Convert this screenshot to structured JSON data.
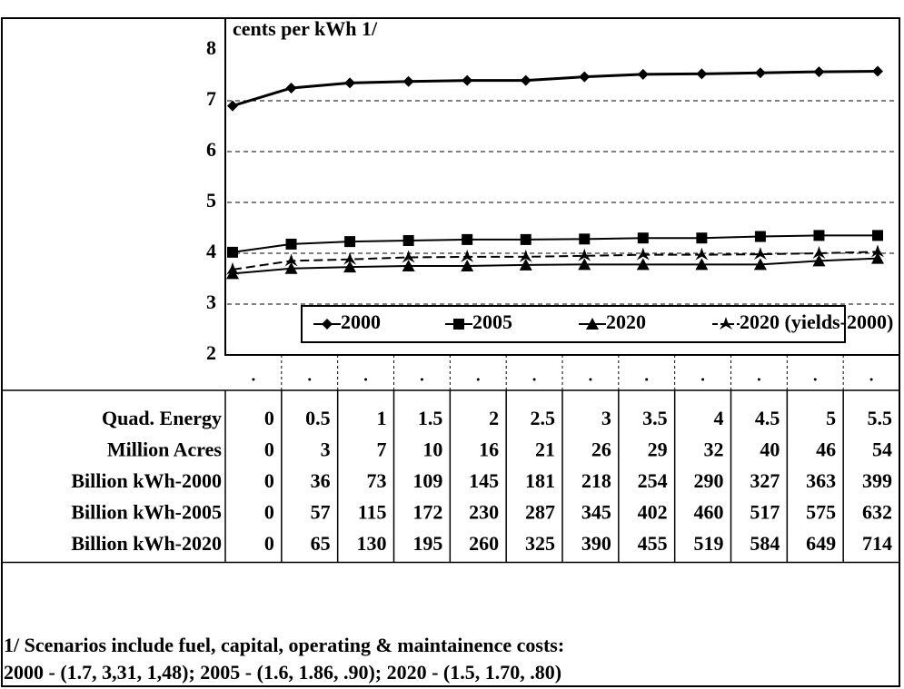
{
  "chart_data": {
    "type": "line",
    "ylabel": "cents per kWh 1/",
    "x": [
      0,
      0.5,
      1,
      1.5,
      2,
      2.5,
      3,
      3.5,
      4,
      4.5,
      5,
      5.5
    ],
    "xlim": [
      0,
      5.5
    ],
    "xlabel": "Quad. Energy",
    "ylim": [
      2,
      8
    ],
    "yticks": [
      2,
      3,
      4,
      5,
      6,
      7,
      8
    ],
    "grid": true,
    "series": [
      {
        "name": "2000",
        "color": "#000",
        "marker": "diamond",
        "values": [
          6.9,
          7.25,
          7.35,
          7.38,
          7.4,
          7.4,
          7.47,
          7.52,
          7.53,
          7.55,
          7.57,
          7.58
        ]
      },
      {
        "name": "2005",
        "color": "#000",
        "marker": "square",
        "values": [
          4.02,
          4.18,
          4.23,
          4.25,
          4.27,
          4.27,
          4.28,
          4.3,
          4.3,
          4.33,
          4.35,
          4.35
        ]
      },
      {
        "name": "2020",
        "color": "#000",
        "marker": "triangle",
        "values": [
          3.6,
          3.7,
          3.73,
          3.75,
          3.75,
          3.77,
          3.78,
          3.78,
          3.78,
          3.78,
          3.85,
          3.9
        ]
      },
      {
        "name": "2020 (yields-2000)",
        "color": "#000",
        "marker": "star",
        "dashed": true,
        "values": [
          3.68,
          3.85,
          3.88,
          3.92,
          3.93,
          3.93,
          3.95,
          3.97,
          3.97,
          3.98,
          4.0,
          4.03
        ]
      }
    ],
    "table": {
      "rows": [
        {
          "label": "Million Acres",
          "values": [
            0,
            3,
            7,
            10,
            16,
            21,
            26,
            29,
            32,
            40,
            46,
            54
          ]
        },
        {
          "label": "Billion kWh-2000",
          "values": [
            0,
            36,
            73,
            109,
            145,
            181,
            218,
            254,
            290,
            327,
            363,
            399
          ]
        },
        {
          "label": "Billion kWh-2005",
          "values": [
            0,
            57,
            115,
            172,
            230,
            287,
            345,
            402,
            460,
            517,
            575,
            632
          ]
        },
        {
          "label": "Billion kWh-2020",
          "values": [
            0,
            65,
            130,
            195,
            260,
            325,
            390,
            455,
            519,
            584,
            649,
            714
          ]
        }
      ]
    },
    "footnote": [
      "1/ Scenarios include fuel, capital, operating & maintainence costs:",
      "2000 - (1.7, 3,31, 1,48); 2005 - (1.6, 1.86, .90);  2020 - (1.5, 1.70, .80)"
    ]
  }
}
